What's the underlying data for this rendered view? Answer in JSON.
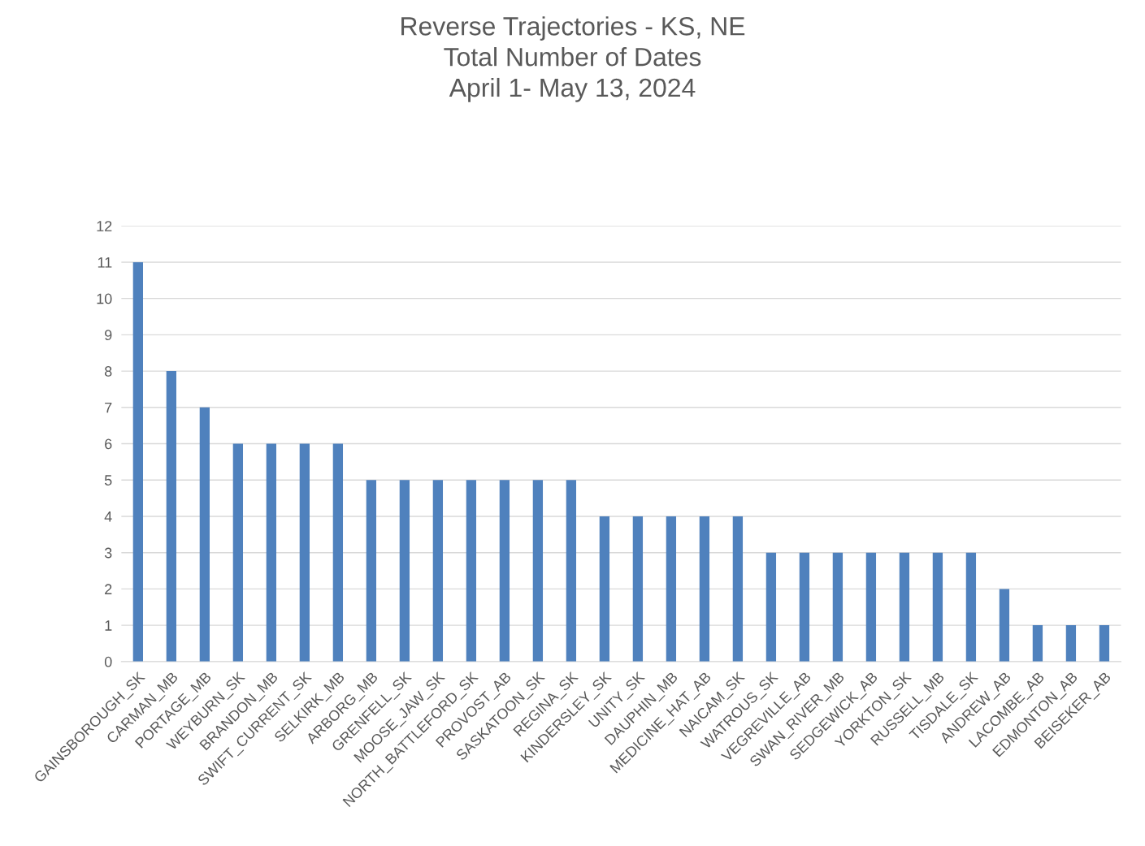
{
  "chart_data": {
    "type": "bar",
    "title": "Reverse Trajectories - KS, NE\nTotal Number of Dates\nApril 1- May 13, 2024",
    "categories": [
      "GAINSBOROUGH_SK",
      "CARMAN_MB",
      "PORTAGE_MB",
      "WEYBURN_SK",
      "BRANDON_MB",
      "SWIFT_CURRENT_SK",
      "SELKIRK_MB",
      "ARBORG_MB",
      "GRENFELL_SK",
      "MOOSE_JAW_SK",
      "NORTH_BATTLEFORD_SK",
      "PROVOST_AB",
      "SASKATOON_SK",
      "REGINA_SK",
      "KINDERSLEY_SK",
      "UNITY_SK",
      "DAUPHIN_MB",
      "MEDICINE_HAT_AB",
      "NAICAM_SK",
      "WATROUS_SK",
      "VEGREVILLE_AB",
      "SWAN_RIVER_MB",
      "SEDGEWICK_AB",
      "YORKTON_SK",
      "RUSSELL_MB",
      "TISDALE_SK",
      "ANDREW_AB",
      "LACOMBE_AB",
      "EDMONTON_AB",
      "BEISEKER_AB"
    ],
    "values": [
      11,
      8,
      7,
      6,
      6,
      6,
      6,
      5,
      5,
      5,
      5,
      5,
      5,
      5,
      4,
      4,
      4,
      4,
      4,
      3,
      3,
      3,
      3,
      3,
      3,
      3,
      2,
      1,
      1,
      1
    ],
    "color": "#4f81bd",
    "ylim": [
      0,
      12
    ],
    "yticks": [
      0,
      1,
      2,
      3,
      4,
      5,
      6,
      7,
      8,
      9,
      10,
      11,
      12
    ],
    "grid": "y",
    "legend": false
  }
}
